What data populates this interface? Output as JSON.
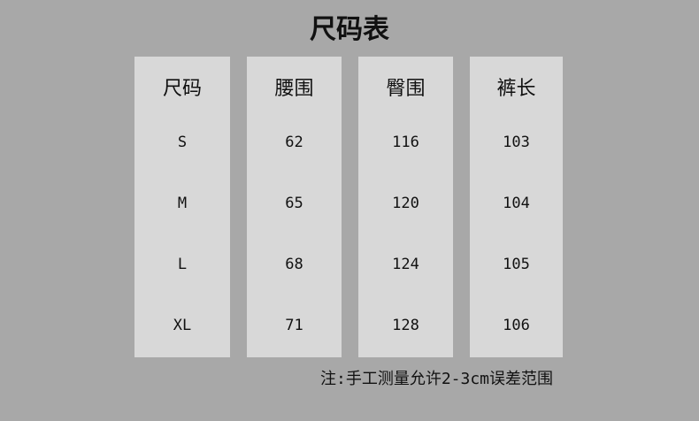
{
  "title": "尺码表",
  "columns": [
    {
      "header": "尺码",
      "values": [
        "S",
        "M",
        "L",
        "XL"
      ]
    },
    {
      "header": "腰围",
      "values": [
        "62",
        "65",
        "68",
        "71"
      ]
    },
    {
      "header": "臀围",
      "values": [
        "116",
        "120",
        "124",
        "128"
      ]
    },
    {
      "header": "裤长",
      "values": [
        "103",
        "104",
        "105",
        "106"
      ]
    }
  ],
  "note": "注:手工测量允许2-3cm误差范围",
  "colors": {
    "background": "#a8a8a8",
    "panel": "#d8d8d8",
    "text": "#111111"
  }
}
